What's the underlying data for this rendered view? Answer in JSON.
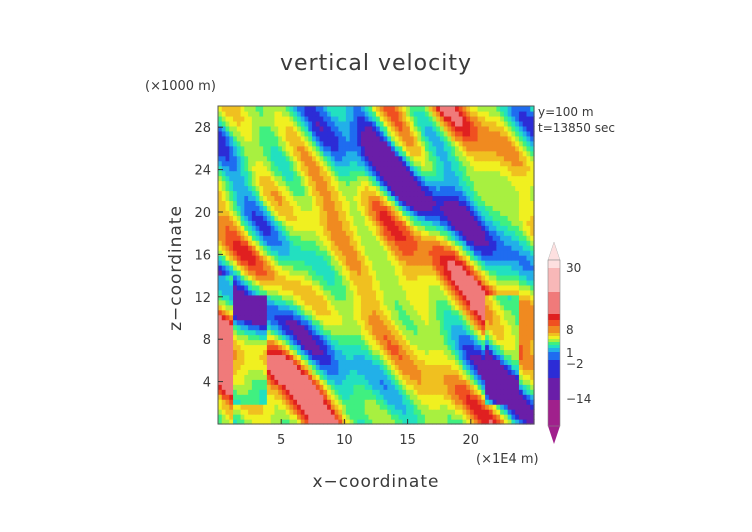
{
  "chart_data": {
    "type": "heatmap",
    "title": "vertical velocity",
    "xlabel": "x−coordinate",
    "ylabel": "z−coordinate",
    "x_unit": "(×1E4 m)",
    "y_unit": "(×1000 m)",
    "annotations": [
      "y=100 m",
      "t=13850 sec"
    ],
    "xlim": [
      0,
      25
    ],
    "ylim": [
      0,
      30
    ],
    "x_ticks": [
      5,
      10,
      15,
      20
    ],
    "x_tick_labels": [
      "5",
      "10",
      "15",
      "20"
    ],
    "y_ticks": [
      4,
      8,
      12,
      16,
      20,
      24,
      28
    ],
    "y_tick_labels": [
      "4",
      "8",
      "12",
      "16",
      "20",
      "24",
      "28"
    ],
    "colorbar": {
      "levels": [
        -14,
        -2,
        1,
        8,
        30
      ],
      "labels": [
        "30",
        "8",
        "1",
        "−2",
        "−14"
      ],
      "colors": [
        "#a0208c",
        "#6a1ea8",
        "#2c2cd6",
        "#1f6cf0",
        "#22b0e8",
        "#22e0c0",
        "#40f080",
        "#a8f040",
        "#f0f020",
        "#f0c020",
        "#f08a20",
        "#f05020",
        "#e02020",
        "#f07a7a",
        "#f8b8b8",
        "#fde0e0"
      ]
    }
  }
}
